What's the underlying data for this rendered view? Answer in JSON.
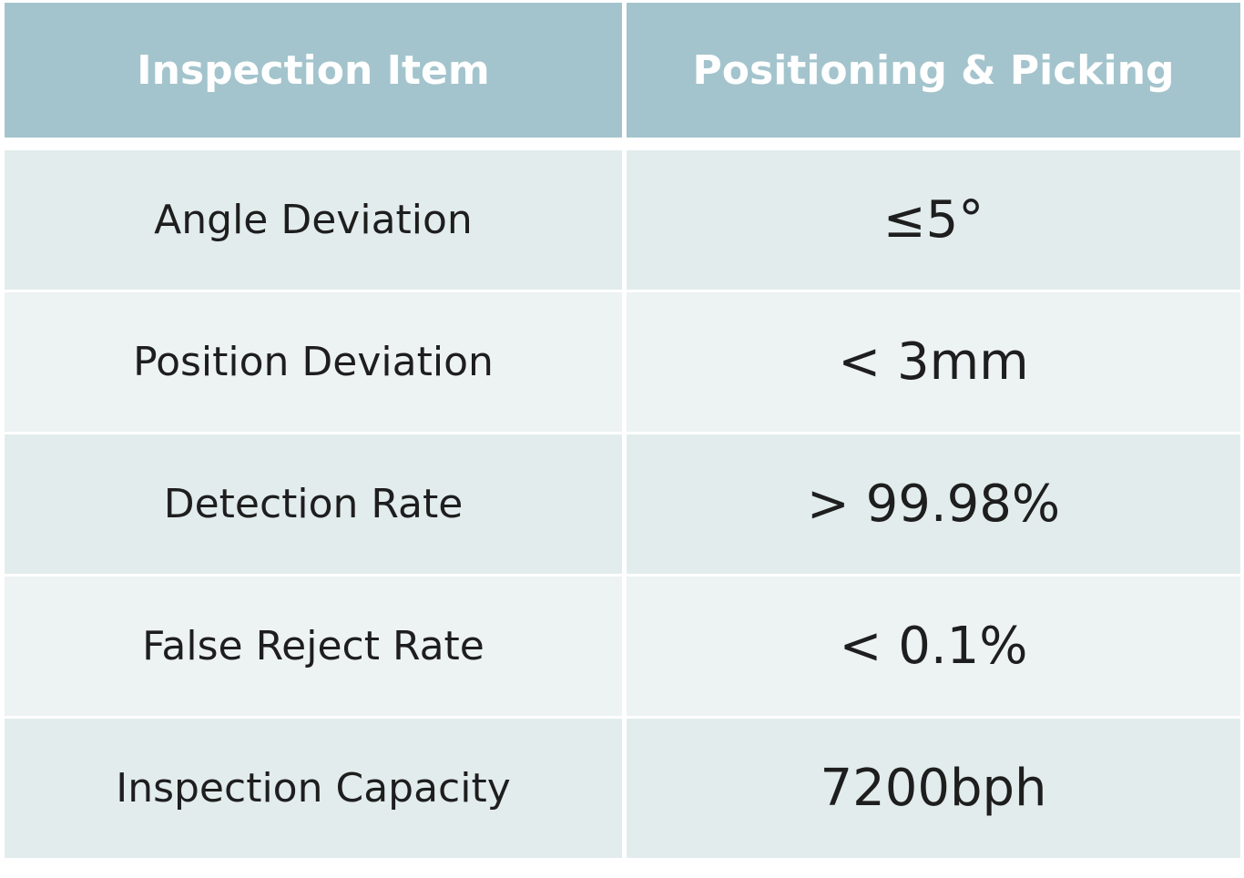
{
  "table": {
    "header": [
      "Inspection Item",
      "Positioning & Picking"
    ],
    "rows": [
      [
        "Angle Deviation",
        "≤5°"
      ],
      [
        "Position Deviation",
        "< 3mm"
      ],
      [
        "Detection Rate",
        "> 99.98%"
      ],
      [
        "False Reject Rate",
        "< 0.1%"
      ],
      [
        "Inspection Capacity",
        "7200bph"
      ]
    ]
  }
}
